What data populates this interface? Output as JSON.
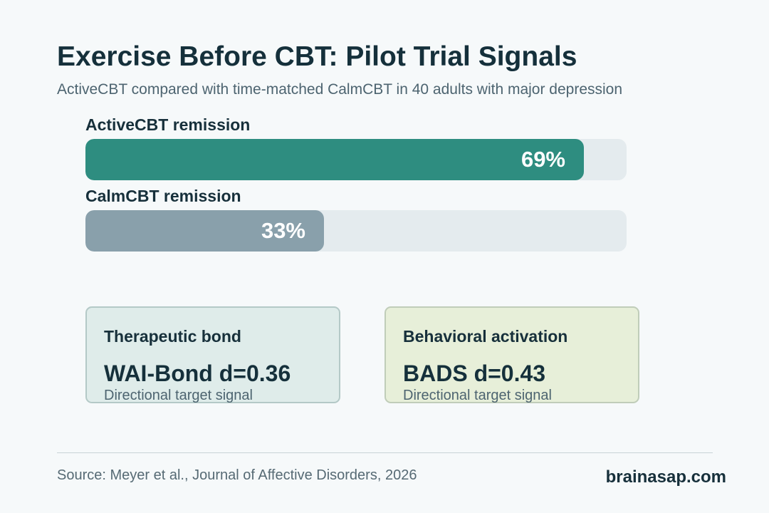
{
  "title": "Exercise Before CBT: Pilot Trial Signals",
  "subtitle": "ActiveCBT compared with time-matched CalmCBT in 40 adults with major depression",
  "chart_data": {
    "type": "bar",
    "orientation": "horizontal",
    "categories": [
      "ActiveCBT remission",
      "CalmCBT remission"
    ],
    "values": [
      69,
      33
    ],
    "value_labels": [
      "69%",
      "33%"
    ],
    "xlim": [
      0,
      100
    ],
    "colors": [
      "#2e8d80",
      "#89a0ab"
    ],
    "track_color": "#e4ebee"
  },
  "cards": [
    {
      "heading": "Therapeutic bond",
      "metric": "WAI-Bond d=0.36",
      "note": "Directional target signal",
      "background": "#dfecea",
      "border": "#b4c9c7"
    },
    {
      "heading": "Behavioral activation",
      "metric": "BADS d=0.43",
      "note": "Directional target signal",
      "background": "#e7efd9",
      "border": "#c0cdb9"
    }
  ],
  "footer": {
    "source": "Source: Meyer et al., Journal of Affective Disorders, 2026",
    "brand": "brainasap.com"
  }
}
